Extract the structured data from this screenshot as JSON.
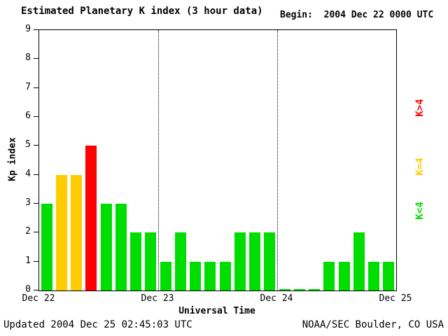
{
  "header": {
    "title": "Estimated Planetary K index (3 hour data)",
    "begin": "Begin:  2004 Dec 22 0000 UTC"
  },
  "footer": {
    "updated": "Updated 2004 Dec 25 02:45:03 UTC",
    "source": "NOAA/SEC Boulder, CO USA"
  },
  "colors": {
    "low": "#00dd00",
    "mid": "#ffcc00",
    "high": "#ff0000",
    "axis": "#000000",
    "background": "#ffffff"
  },
  "legend": [
    {
      "label": "K>4",
      "level": "high"
    },
    {
      "label": "K=4",
      "level": "mid"
    },
    {
      "label": "K<4",
      "level": "low"
    }
  ],
  "chart_data": {
    "type": "bar",
    "title": "Estimated Planetary K index (3 hour data)",
    "begin": "2004 Dec 22 0000 UTC",
    "xlabel": "Universal Time",
    "ylabel": "Kp index",
    "ylim": [
      0,
      9
    ],
    "yticks": [
      0,
      1,
      2,
      3,
      4,
      5,
      6,
      7,
      8,
      9
    ],
    "interval_hours": 3,
    "day_labels": [
      "Dec 22",
      "Dec 23",
      "Dec 24",
      "Dec 25"
    ],
    "values": [
      3,
      4,
      4,
      5,
      3,
      3,
      2,
      2,
      1,
      2,
      1,
      1,
      1,
      2,
      2,
      2,
      0,
      0,
      0,
      1,
      1,
      2,
      1,
      1
    ],
    "color_rule": "value<4 green, value=4 yellow, value>4 red",
    "grid": "dotted vertical lines at day boundaries",
    "legend_position": "right, rotated 90deg"
  }
}
